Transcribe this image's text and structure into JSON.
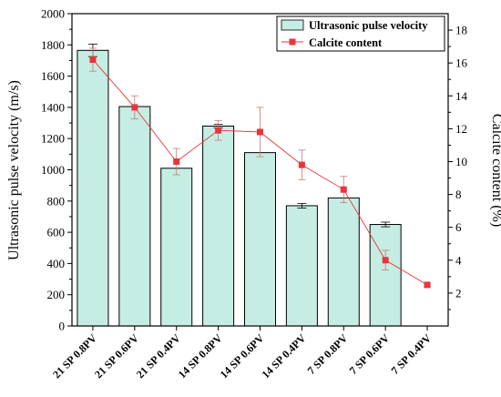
{
  "chart_data": {
    "type": "bar",
    "categories": [
      "21 SP 0.8PV",
      "21 SP 0.6PV",
      "21 SP 0.4PV",
      "14 SP 0.8PV",
      "14 SP 0.6PV",
      "14 SP 0.4PV",
      "7 SP 0.8PV",
      "7 SP 0.6PV",
      "7 SP 0.4PV"
    ],
    "series": [
      {
        "name": "Ultrasonic pulse velocity",
        "kind": "bar",
        "axis": "left",
        "values": [
          1765,
          1405,
          1010,
          1280,
          1110,
          770,
          820,
          650,
          null
        ],
        "error": [
          40,
          0,
          0,
          12,
          0,
          15,
          0,
          15,
          null
        ],
        "color": "#c6ede3"
      },
      {
        "name": "Calcite content",
        "kind": "line",
        "axis": "right",
        "values": [
          16.2,
          13.3,
          10.0,
          11.9,
          11.8,
          9.8,
          8.3,
          4.0,
          2.5
        ],
        "error": [
          0.7,
          0.7,
          0.8,
          0.6,
          1.5,
          0.9,
          0.8,
          0.6,
          0.1
        ],
        "color": "#e8353d"
      }
    ],
    "ylabel": "Ultrasonic pulse velocity (m/s)",
    "y2label": "Calcite content (%)",
    "ylim": [
      0,
      2000
    ],
    "y2lim": [
      0,
      19
    ],
    "yticks": [
      "0",
      "200",
      "400",
      "600",
      "800",
      "1000",
      "1200",
      "1400",
      "1600",
      "1800",
      "2000"
    ],
    "y2ticks": [
      "2",
      "4",
      "6",
      "8",
      "10",
      "12",
      "14",
      "16",
      "18"
    ],
    "legend": "top-right",
    "grid": false
  }
}
